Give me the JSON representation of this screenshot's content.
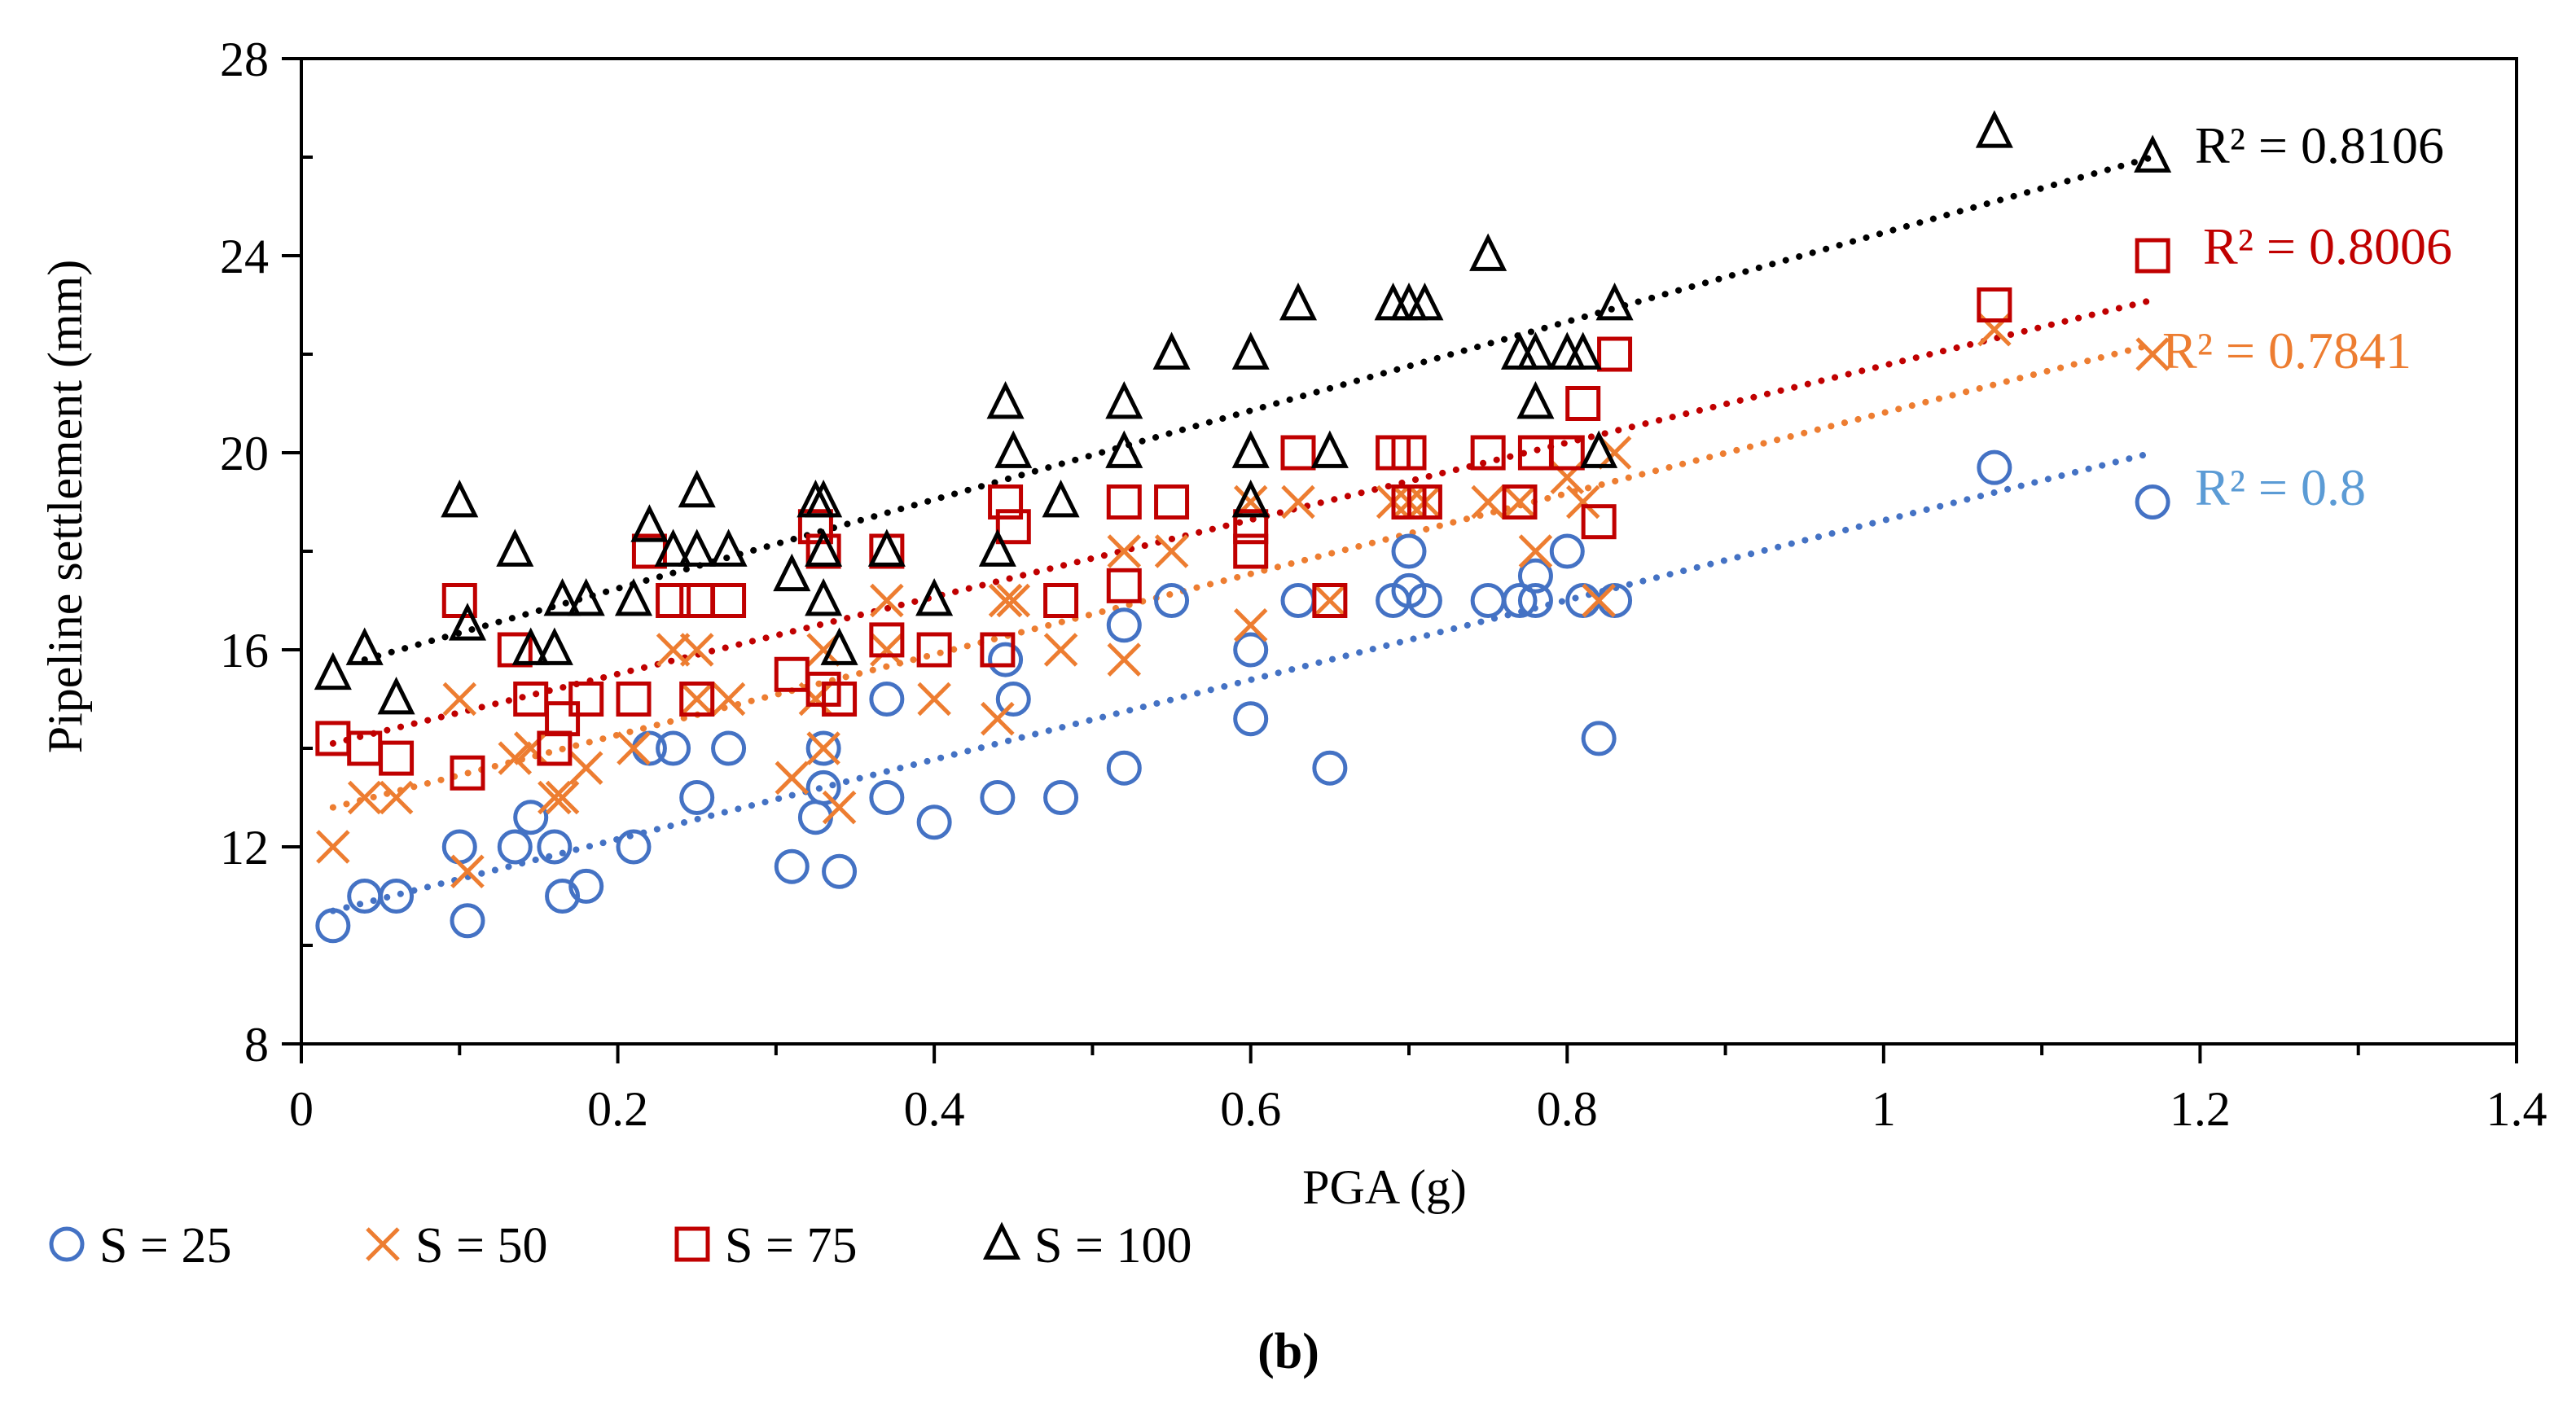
{
  "chart_data": {
    "type": "scatter",
    "title": "",
    "xlabel": "PGA (g)",
    "ylabel": "Pipeline settlement (mm)",
    "xlim": [
      0,
      1.4
    ],
    "ylim": [
      8,
      28
    ],
    "xticks": [
      0,
      0.2,
      0.4,
      0.6,
      0.8,
      1,
      1.2,
      1.4
    ],
    "xtick_labels": [
      "0",
      "0.2",
      "0.4",
      "0.6",
      "0.8",
      "1",
      "1.2",
      "1.4"
    ],
    "yticks": [
      8,
      12,
      16,
      20,
      24,
      28
    ],
    "ytick_labels": [
      "8",
      "12",
      "16",
      "20",
      "24",
      "28"
    ],
    "grid": false,
    "legend_position": "bottom",
    "caption": "(b)",
    "series": [
      {
        "name": "S = 25",
        "marker": "circle",
        "color": "#4472C4",
        "r2_label": "R² = 0.8",
        "r2_color": "#5B9BD5",
        "trend": [
          [
            0.02,
            10.7
          ],
          [
            1.17,
            20.0
          ]
        ],
        "points": [
          [
            0.02,
            10.4
          ],
          [
            0.04,
            11
          ],
          [
            0.06,
            11
          ],
          [
            0.1,
            12
          ],
          [
            0.105,
            10.5
          ],
          [
            0.135,
            12
          ],
          [
            0.145,
            12.6
          ],
          [
            0.16,
            12
          ],
          [
            0.165,
            11
          ],
          [
            0.18,
            11.2
          ],
          [
            0.21,
            12
          ],
          [
            0.22,
            14
          ],
          [
            0.235,
            14
          ],
          [
            0.25,
            13
          ],
          [
            0.27,
            14
          ],
          [
            0.31,
            11.6
          ],
          [
            0.325,
            12.6
          ],
          [
            0.33,
            13.2
          ],
          [
            0.33,
            14
          ],
          [
            0.34,
            11.5
          ],
          [
            0.37,
            15
          ],
          [
            0.37,
            13
          ],
          [
            0.4,
            12.5
          ],
          [
            0.44,
            13
          ],
          [
            0.445,
            15.8
          ],
          [
            0.45,
            15
          ],
          [
            0.48,
            13
          ],
          [
            0.52,
            16.5
          ],
          [
            0.52,
            13.6
          ],
          [
            0.55,
            17
          ],
          [
            0.6,
            16
          ],
          [
            0.6,
            14.6
          ],
          [
            0.63,
            17
          ],
          [
            0.65,
            13.6
          ],
          [
            0.69,
            17
          ],
          [
            0.7,
            18
          ],
          [
            0.7,
            17.2
          ],
          [
            0.71,
            17
          ],
          [
            0.75,
            17
          ],
          [
            0.77,
            17
          ],
          [
            0.78,
            17.5
          ],
          [
            0.78,
            17
          ],
          [
            0.8,
            18
          ],
          [
            0.81,
            17
          ],
          [
            0.82,
            14.2
          ],
          [
            0.83,
            17
          ],
          [
            1.07,
            19.7
          ],
          [
            1.17,
            19
          ]
        ]
      },
      {
        "name": "S = 50",
        "marker": "x",
        "color": "#ED7D31",
        "r2_label": "R² = 0.7841",
        "r2_color": "#ED7D31",
        "trend": [
          [
            0.02,
            12.8
          ],
          [
            1.17,
            22.2
          ]
        ],
        "points": [
          [
            0.02,
            12
          ],
          [
            0.04,
            13
          ],
          [
            0.06,
            13
          ],
          [
            0.1,
            15
          ],
          [
            0.105,
            11.5
          ],
          [
            0.135,
            13.8
          ],
          [
            0.145,
            14
          ],
          [
            0.16,
            13
          ],
          [
            0.165,
            13
          ],
          [
            0.18,
            13.6
          ],
          [
            0.21,
            14
          ],
          [
            0.235,
            16
          ],
          [
            0.25,
            16
          ],
          [
            0.25,
            15
          ],
          [
            0.27,
            15
          ],
          [
            0.31,
            13.4
          ],
          [
            0.325,
            15
          ],
          [
            0.33,
            14
          ],
          [
            0.33,
            16
          ],
          [
            0.34,
            12.8
          ],
          [
            0.37,
            17
          ],
          [
            0.37,
            16
          ],
          [
            0.4,
            15
          ],
          [
            0.44,
            14.6
          ],
          [
            0.445,
            17
          ],
          [
            0.45,
            17
          ],
          [
            0.48,
            16
          ],
          [
            0.52,
            18
          ],
          [
            0.52,
            15.8
          ],
          [
            0.55,
            18
          ],
          [
            0.6,
            19
          ],
          [
            0.6,
            16.5
          ],
          [
            0.63,
            19
          ],
          [
            0.65,
            17
          ],
          [
            0.69,
            19
          ],
          [
            0.7,
            19
          ],
          [
            0.71,
            19
          ],
          [
            0.75,
            19
          ],
          [
            0.77,
            19
          ],
          [
            0.78,
            18
          ],
          [
            0.8,
            19.5
          ],
          [
            0.81,
            19
          ],
          [
            0.82,
            17
          ],
          [
            0.83,
            20
          ],
          [
            1.07,
            22.5
          ],
          [
            1.17,
            22
          ]
        ]
      },
      {
        "name": "S = 75",
        "marker": "square",
        "color": "#C00000",
        "r2_label": "R² = 0.8006",
        "r2_color": "#C00000",
        "trend": [
          [
            0.02,
            14.1
          ],
          [
            1.17,
            23.1
          ]
        ],
        "points": [
          [
            0.02,
            14.2
          ],
          [
            0.04,
            14
          ],
          [
            0.06,
            13.8
          ],
          [
            0.1,
            17
          ],
          [
            0.105,
            13.5
          ],
          [
            0.135,
            16
          ],
          [
            0.145,
            15
          ],
          [
            0.16,
            14
          ],
          [
            0.165,
            14.6
          ],
          [
            0.18,
            15
          ],
          [
            0.21,
            15
          ],
          [
            0.22,
            18
          ],
          [
            0.235,
            17
          ],
          [
            0.25,
            17
          ],
          [
            0.25,
            15
          ],
          [
            0.27,
            17
          ],
          [
            0.31,
            15.5
          ],
          [
            0.325,
            18.5
          ],
          [
            0.33,
            18
          ],
          [
            0.33,
            15.2
          ],
          [
            0.34,
            15
          ],
          [
            0.37,
            18
          ],
          [
            0.37,
            16.2
          ],
          [
            0.4,
            16
          ],
          [
            0.44,
            16
          ],
          [
            0.445,
            19
          ],
          [
            0.45,
            18.5
          ],
          [
            0.48,
            17
          ],
          [
            0.52,
            19
          ],
          [
            0.52,
            17.3
          ],
          [
            0.55,
            19
          ],
          [
            0.6,
            18.5
          ],
          [
            0.6,
            18
          ],
          [
            0.63,
            20
          ],
          [
            0.65,
            17
          ],
          [
            0.69,
            20
          ],
          [
            0.7,
            20
          ],
          [
            0.7,
            19
          ],
          [
            0.71,
            19
          ],
          [
            0.75,
            20
          ],
          [
            0.77,
            19
          ],
          [
            0.78,
            20
          ],
          [
            0.8,
            20
          ],
          [
            0.81,
            21
          ],
          [
            0.82,
            18.6
          ],
          [
            0.83,
            22
          ],
          [
            1.07,
            23
          ],
          [
            1.17,
            24
          ]
        ]
      },
      {
        "name": "S = 100",
        "marker": "triangle",
        "color": "#000000",
        "r2_label": "R² = 0.8106",
        "r2_color": "#000000",
        "trend": [
          [
            0.04,
            15.8
          ],
          [
            1.17,
            26.0
          ]
        ],
        "points": [
          [
            0.02,
            15.5
          ],
          [
            0.04,
            16
          ],
          [
            0.06,
            15
          ],
          [
            0.1,
            19
          ],
          [
            0.105,
            16.5
          ],
          [
            0.135,
            18
          ],
          [
            0.145,
            16
          ],
          [
            0.16,
            16
          ],
          [
            0.165,
            17
          ],
          [
            0.18,
            17
          ],
          [
            0.21,
            17
          ],
          [
            0.22,
            18.5
          ],
          [
            0.235,
            18
          ],
          [
            0.25,
            19.2
          ],
          [
            0.25,
            18
          ],
          [
            0.27,
            18
          ],
          [
            0.31,
            17.5
          ],
          [
            0.325,
            19
          ],
          [
            0.33,
            19
          ],
          [
            0.33,
            18
          ],
          [
            0.33,
            17
          ],
          [
            0.34,
            16
          ],
          [
            0.37,
            18
          ],
          [
            0.4,
            17
          ],
          [
            0.44,
            18
          ],
          [
            0.445,
            21
          ],
          [
            0.45,
            20
          ],
          [
            0.48,
            19
          ],
          [
            0.52,
            21
          ],
          [
            0.52,
            20
          ],
          [
            0.55,
            22
          ],
          [
            0.6,
            22
          ],
          [
            0.6,
            20
          ],
          [
            0.6,
            19
          ],
          [
            0.63,
            23
          ],
          [
            0.65,
            20
          ],
          [
            0.69,
            23
          ],
          [
            0.7,
            23
          ],
          [
            0.71,
            23
          ],
          [
            0.75,
            24
          ],
          [
            0.77,
            22
          ],
          [
            0.78,
            22
          ],
          [
            0.78,
            21
          ],
          [
            0.8,
            22
          ],
          [
            0.81,
            22
          ],
          [
            0.82,
            20
          ],
          [
            0.83,
            23
          ],
          [
            1.07,
            26.5
          ],
          [
            1.17,
            26
          ]
        ]
      }
    ]
  }
}
